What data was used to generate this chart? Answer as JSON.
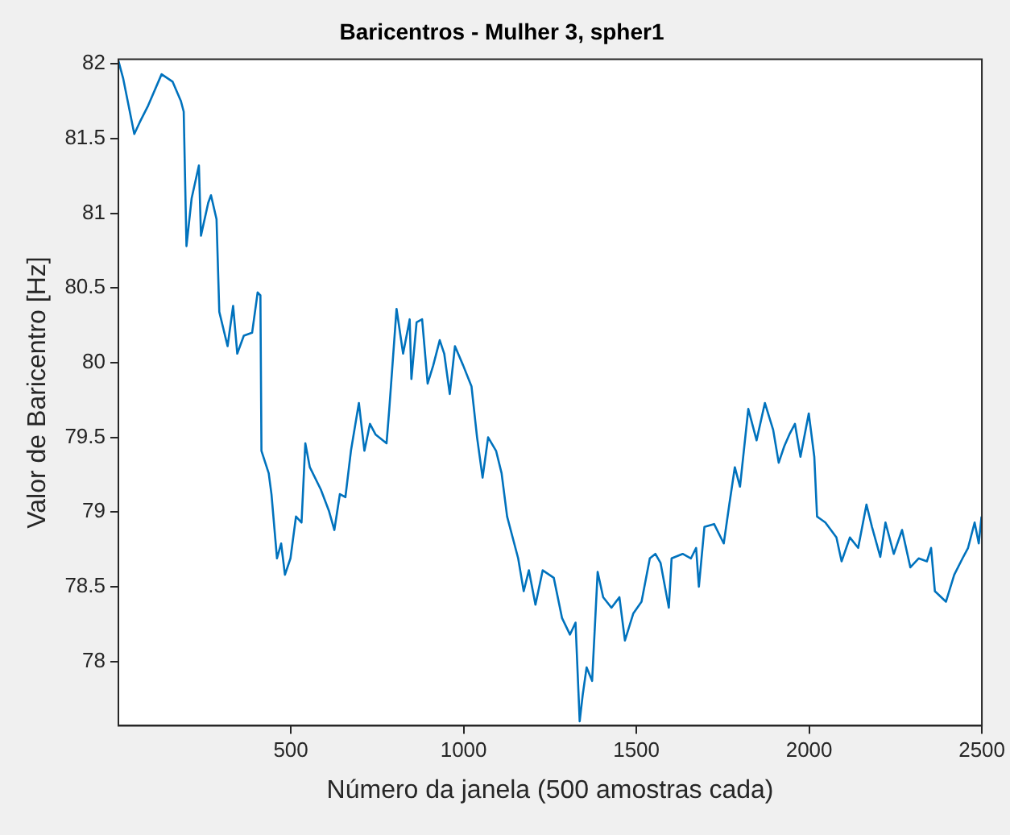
{
  "chart_data": {
    "type": "line",
    "title": "Baricentros - Mulher 3, spher1",
    "xlabel": "Número da janela (500 amostras cada)",
    "ylabel": "Valor de Baricentro [Hz]",
    "x": [
      1,
      15,
      47,
      63,
      87,
      126,
      158,
      182,
      190,
      198,
      213,
      234,
      240,
      261,
      269,
      285,
      293,
      317,
      333,
      345,
      364,
      388,
      404,
      412,
      415,
      436,
      444,
      460,
      472,
      483,
      499,
      515,
      531,
      542,
      555,
      587,
      610,
      626,
      642,
      658,
      674,
      697,
      713,
      729,
      745,
      777,
      785,
      806,
      825,
      844,
      849,
      864,
      880,
      896,
      912,
      931,
      944,
      960,
      975,
      999,
      1023,
      1039,
      1055,
      1071,
      1094,
      1110,
      1126,
      1158,
      1174,
      1189,
      1208,
      1229,
      1261,
      1285,
      1308,
      1324,
      1336,
      1345,
      1356,
      1372,
      1388,
      1404,
      1428,
      1451,
      1467,
      1491,
      1515,
      1539,
      1555,
      1570,
      1594,
      1602,
      1634,
      1658,
      1673,
      1681,
      1697,
      1725,
      1753,
      1769,
      1785,
      1800,
      1824,
      1848,
      1872,
      1896,
      1912,
      1928,
      1943,
      1959,
      1975,
      1999,
      2015,
      2023,
      2047,
      2079,
      2094,
      2118,
      2142,
      2166,
      2182,
      2206,
      2221,
      2245,
      2269,
      2293,
      2317,
      2341,
      2353,
      2364,
      2396,
      2420,
      2444,
      2460,
      2479,
      2491,
      2499
    ],
    "series": [
      {
        "color": "#0072bd",
        "values": [
          82.02,
          81.9,
          81.53,
          81.61,
          81.72,
          81.93,
          81.88,
          81.75,
          81.68,
          80.78,
          81.1,
          81.32,
          80.85,
          81.07,
          81.12,
          80.96,
          80.34,
          80.11,
          80.38,
          80.06,
          80.18,
          80.2,
          80.47,
          80.45,
          79.41,
          79.26,
          79.12,
          78.69,
          78.79,
          78.58,
          78.69,
          78.97,
          78.93,
          79.46,
          79.3,
          79.15,
          79.01,
          78.88,
          79.12,
          79.1,
          79.41,
          79.73,
          79.41,
          79.59,
          79.52,
          79.46,
          79.69,
          80.36,
          80.06,
          80.29,
          79.89,
          80.27,
          80.29,
          79.86,
          79.98,
          80.15,
          80.06,
          79.79,
          80.11,
          79.98,
          79.84,
          79.5,
          79.23,
          79.5,
          79.41,
          79.26,
          78.97,
          78.69,
          78.47,
          78.61,
          78.38,
          78.61,
          78.56,
          78.29,
          78.18,
          78.26,
          77.6,
          77.78,
          77.96,
          77.87,
          78.6,
          78.43,
          78.36,
          78.43,
          78.14,
          78.32,
          78.4,
          78.69,
          78.72,
          78.66,
          78.36,
          78.69,
          78.72,
          78.69,
          78.76,
          78.5,
          78.9,
          78.92,
          78.79,
          79.05,
          79.3,
          79.17,
          79.69,
          79.48,
          79.73,
          79.55,
          79.33,
          79.44,
          79.52,
          79.59,
          79.37,
          79.66,
          79.37,
          78.97,
          78.93,
          78.83,
          78.67,
          78.83,
          78.76,
          79.05,
          78.9,
          78.7,
          78.93,
          78.72,
          78.88,
          78.63,
          78.69,
          78.67,
          78.76,
          78.47,
          78.4,
          78.58,
          78.69,
          78.76,
          78.93,
          78.79,
          78.97
        ]
      }
    ],
    "xlim": [
      1,
      2500
    ],
    "xticks": [
      500,
      1000,
      1500,
      2000,
      2500
    ],
    "ylim": [
      77.57,
      82.03
    ],
    "yticks": [
      78,
      78.5,
      79,
      79.5,
      80,
      80.5,
      81,
      81.5,
      82
    ],
    "grid": false,
    "legend": false,
    "marker": "none",
    "line_style": "solid"
  }
}
